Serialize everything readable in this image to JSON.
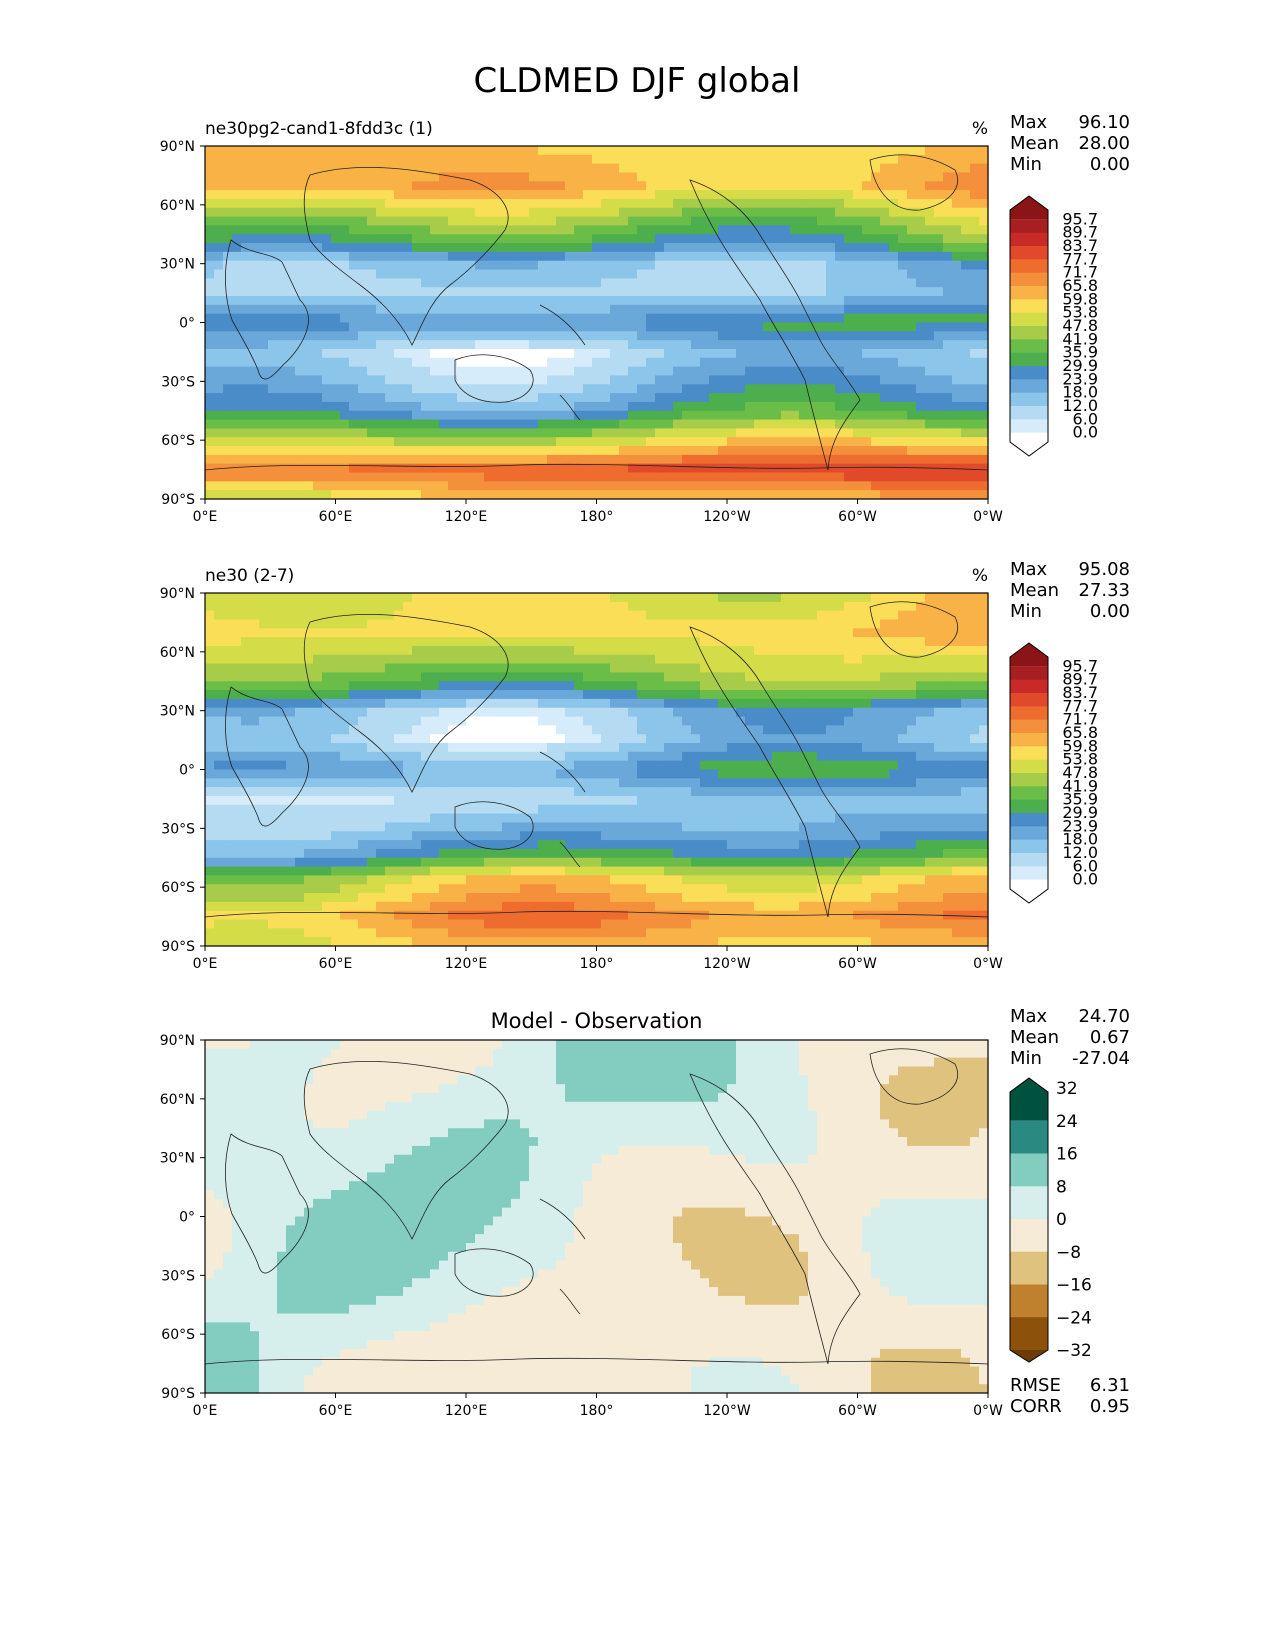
{
  "figure_title": "CLDMED DJF global",
  "chart_data": [
    {
      "type": "heatmap",
      "panel_title": "ne30pg2-cand1-8fdd3c (1)",
      "units": "%",
      "stats": {
        "Max": "96.10",
        "Mean": "28.00",
        "Min": "0.00"
      },
      "stat_labels": [
        "Max",
        "Mean",
        "Min"
      ],
      "colorbar_levels": [
        "0.0",
        "6.0",
        "12.0",
        "18.0",
        "23.9",
        "29.9",
        "35.9",
        "41.9",
        "47.8",
        "53.8",
        "59.8",
        "65.8",
        "71.7",
        "77.7",
        "83.7",
        "89.7",
        "95.7"
      ],
      "colorbar_colors": [
        "#ffffff",
        "#d6ecfa",
        "#b4dbf2",
        "#8cc5ea",
        "#6aa8da",
        "#4a8cc8",
        "#4cae4c",
        "#6abd46",
        "#a6cc4a",
        "#d4dc47",
        "#fbde57",
        "#f9b246",
        "#f48f3b",
        "#ef6c2f",
        "#e04a2a",
        "#c82b27",
        "#a81f22",
        "#8b1516"
      ],
      "xticks": [
        "0°E",
        "60°E",
        "120°E",
        "180°",
        "120°W",
        "60°W",
        "0°W"
      ],
      "yticks": [
        "90°N",
        "60°N",
        "30°N",
        "0°",
        "30°S",
        "60°S",
        "90°S"
      ],
      "zonal_pattern": [
        {
          "lat": 90,
          "value": 62
        },
        {
          "lat": 70,
          "value": 66
        },
        {
          "lat": 50,
          "value": 44
        },
        {
          "lat": 40,
          "value": 34
        },
        {
          "lat": 30,
          "value": 18
        },
        {
          "lat": 15,
          "value": 14
        },
        {
          "lat": 0,
          "value": 30
        },
        {
          "lat": -15,
          "value": 12
        },
        {
          "lat": -30,
          "value": 18
        },
        {
          "lat": -45,
          "value": 28
        },
        {
          "lat": -55,
          "value": 44
        },
        {
          "lat": -65,
          "value": 60
        },
        {
          "lat": -75,
          "value": 78
        },
        {
          "lat": -90,
          "value": 58
        }
      ]
    },
    {
      "type": "heatmap",
      "panel_title": "ne30 (2-7)",
      "units": "%",
      "stats": {
        "Max": "95.08",
        "Mean": "27.33",
        "Min": "0.00"
      },
      "stat_labels": [
        "Max",
        "Mean",
        "Min"
      ],
      "colorbar_levels": [
        "0.0",
        "6.0",
        "12.0",
        "18.0",
        "23.9",
        "29.9",
        "35.9",
        "41.9",
        "47.8",
        "53.8",
        "59.8",
        "65.8",
        "71.7",
        "77.7",
        "83.7",
        "89.7",
        "95.7"
      ],
      "colorbar_colors": [
        "#ffffff",
        "#d6ecfa",
        "#b4dbf2",
        "#8cc5ea",
        "#6aa8da",
        "#4a8cc8",
        "#4cae4c",
        "#6abd46",
        "#a6cc4a",
        "#d4dc47",
        "#fbde57",
        "#f9b246",
        "#f48f3b",
        "#ef6c2f",
        "#e04a2a",
        "#c82b27",
        "#a81f22",
        "#8b1516"
      ],
      "xticks": [
        "0°E",
        "60°E",
        "120°E",
        "180°",
        "120°W",
        "60°W",
        "0°W"
      ],
      "yticks": [
        "90°N",
        "60°N",
        "30°N",
        "0°",
        "30°S",
        "60°S",
        "90°S"
      ],
      "zonal_pattern": [
        {
          "lat": 90,
          "value": 56
        },
        {
          "lat": 70,
          "value": 60
        },
        {
          "lat": 50,
          "value": 46
        },
        {
          "lat": 40,
          "value": 36
        },
        {
          "lat": 30,
          "value": 16
        },
        {
          "lat": 15,
          "value": 12
        },
        {
          "lat": 0,
          "value": 26
        },
        {
          "lat": -15,
          "value": 10
        },
        {
          "lat": -30,
          "value": 16
        },
        {
          "lat": -45,
          "value": 30
        },
        {
          "lat": -55,
          "value": 52
        },
        {
          "lat": -65,
          "value": 58
        },
        {
          "lat": -75,
          "value": 66
        },
        {
          "lat": -90,
          "value": 56
        }
      ]
    },
    {
      "type": "heatmap",
      "panel_title": "Model - Observation",
      "units": "",
      "stats": {
        "Max": "24.70",
        "Mean": "0.67",
        "Min": "-27.04"
      },
      "stat_labels": [
        "Max",
        "Mean",
        "Min"
      ],
      "colorbar_levels": [
        "32",
        "24",
        "16",
        "8",
        "0",
        "−8",
        "−16",
        "−24",
        "−32"
      ],
      "colorbar_colors": [
        "#01513f",
        "#2a8a82",
        "#82cdc0",
        "#d6efec",
        "#f6ebd6",
        "#dfc27d",
        "#bf812d",
        "#8c510a",
        "#6d3b08"
      ],
      "xticks": [
        "0°E",
        "60°E",
        "120°E",
        "180°",
        "120°W",
        "60°W",
        "0°W"
      ],
      "yticks": [
        "90°N",
        "60°N",
        "30°N",
        "0°",
        "30°S",
        "60°S",
        "90°S"
      ],
      "extra_stats": {
        "RMSE": "6.31",
        "CORR": "0.95"
      },
      "extra_stat_labels": [
        "RMSE",
        "CORR"
      ]
    }
  ]
}
